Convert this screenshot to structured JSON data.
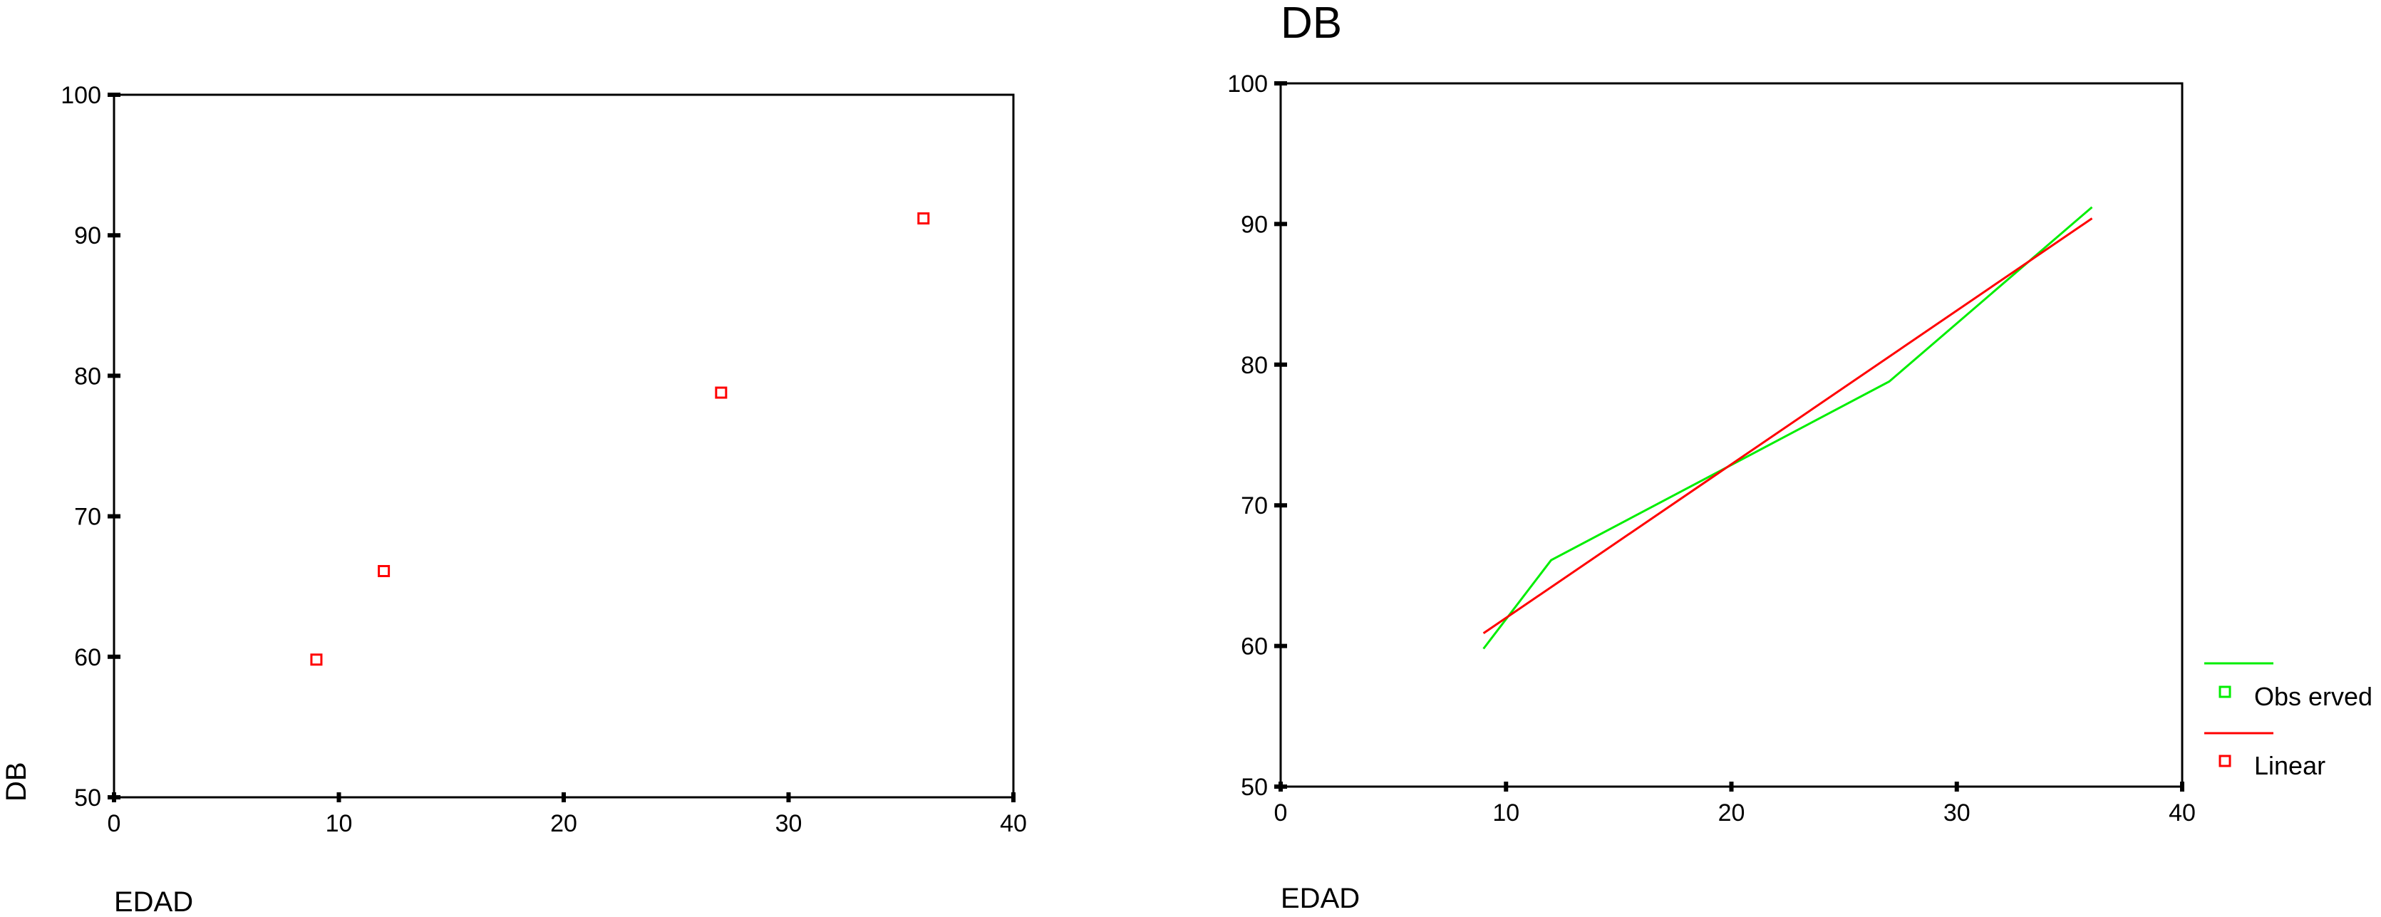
{
  "chart_data": [
    {
      "type": "scatter",
      "title": "",
      "xlabel": "EDAD",
      "ylabel": "DB",
      "xlim": [
        0,
        40
      ],
      "ylim": [
        50,
        100
      ],
      "xticks": [
        0,
        10,
        20,
        30,
        40
      ],
      "yticks": [
        50,
        60,
        70,
        80,
        90,
        100
      ],
      "grid": false,
      "legend": "none",
      "points": [
        {
          "x": 9,
          "y": 59.8
        },
        {
          "x": 12,
          "y": 66.1
        },
        {
          "x": 27,
          "y": 78.8
        },
        {
          "x": 36,
          "y": 91.2
        }
      ],
      "colors": {
        "marker": "#ff0000"
      }
    },
    {
      "type": "line",
      "title": "DB",
      "xlabel": "EDAD",
      "ylabel": "",
      "xlim": [
        0,
        40
      ],
      "ylim": [
        50,
        100
      ],
      "xticks": [
        0,
        10,
        20,
        30,
        40
      ],
      "yticks": [
        50,
        60,
        70,
        80,
        90,
        100
      ],
      "grid": false,
      "legend": "right",
      "series": [
        {
          "name": "Obs erved",
          "color": "#00ee00",
          "x": [
            9,
            12,
            27,
            36
          ],
          "y": [
            59.8,
            66.1,
            78.8,
            91.2
          ]
        },
        {
          "name": "Linear",
          "color": "#ff0000",
          "x": [
            9,
            36
          ],
          "y": [
            60.9,
            90.4
          ]
        }
      ]
    }
  ]
}
